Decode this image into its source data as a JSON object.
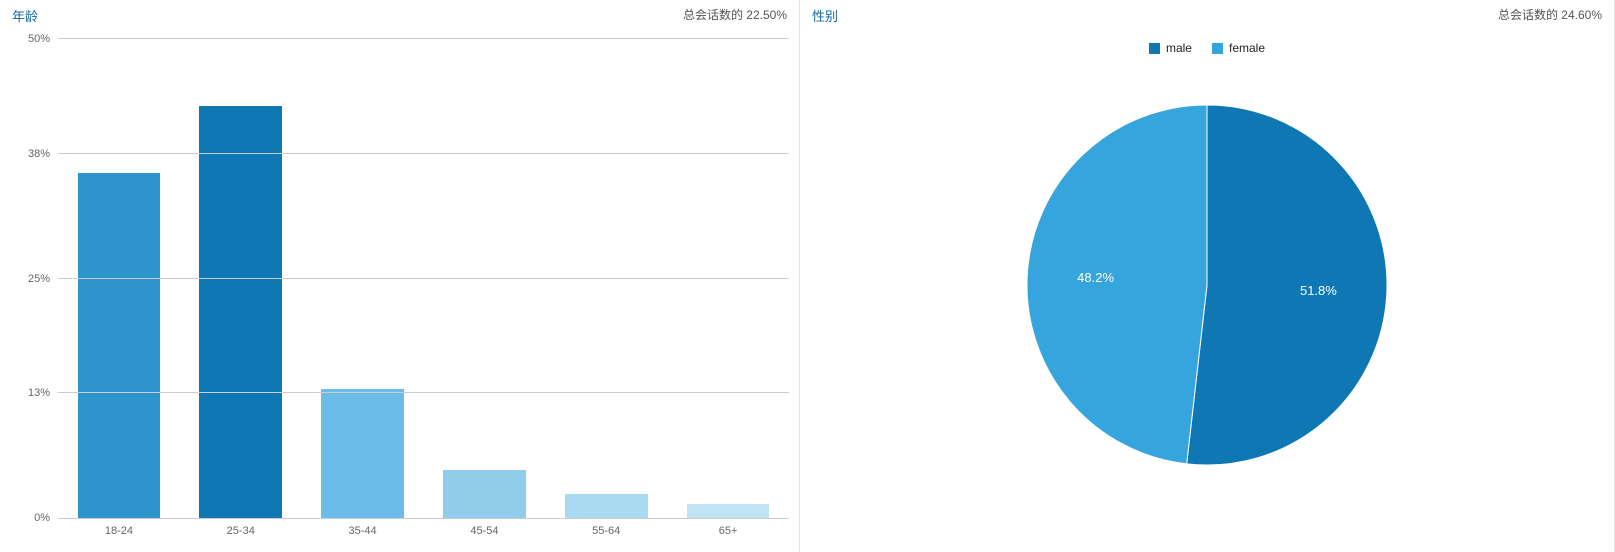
{
  "age_panel": {
    "title": "年龄",
    "meta": "总会话数的 22.50%",
    "chart": {
      "type": "bar",
      "ymax": 50,
      "yticks": [
        {
          "value": 0,
          "label": "0%"
        },
        {
          "value": 13,
          "label": "13%"
        },
        {
          "value": 25,
          "label": "25%"
        },
        {
          "value": 38,
          "label": "38%"
        },
        {
          "value": 50,
          "label": "50%"
        }
      ],
      "gridline_color": "#cccccc",
      "background_color": "#ffffff",
      "label_color": "#666666",
      "label_fontsize": 11,
      "bar_width_ratio": 0.68,
      "bars": [
        {
          "category": "18-24",
          "value": 36,
          "color": "#2e94cc"
        },
        {
          "category": "25-34",
          "value": 43,
          "color": "#0e77b4"
        },
        {
          "category": "35-44",
          "value": 13.5,
          "color": "#6bbce8"
        },
        {
          "category": "45-54",
          "value": 5,
          "color": "#8fcdea"
        },
        {
          "category": "55-64",
          "value": 2.5,
          "color": "#a9daf1"
        },
        {
          "category": "65+",
          "value": 1.5,
          "color": "#bfe4f4"
        }
      ]
    }
  },
  "gender_panel": {
    "title": "性别",
    "meta": "总会话数的 24.60%",
    "chart": {
      "type": "pie",
      "background_color": "#ffffff",
      "divider_color": "#ffffff",
      "divider_width": 1,
      "label_color": "#ffffff",
      "label_fontsize": 13,
      "legend_fontsize": 12,
      "radius": 180,
      "slices": [
        {
          "key": "male",
          "legend": "male",
          "value": 51.8,
          "label": "51.8%",
          "color": "#0e77b4"
        },
        {
          "key": "female",
          "legend": "female",
          "value": 48.2,
          "label": "48.2%",
          "color": "#36a4dd"
        }
      ]
    }
  }
}
